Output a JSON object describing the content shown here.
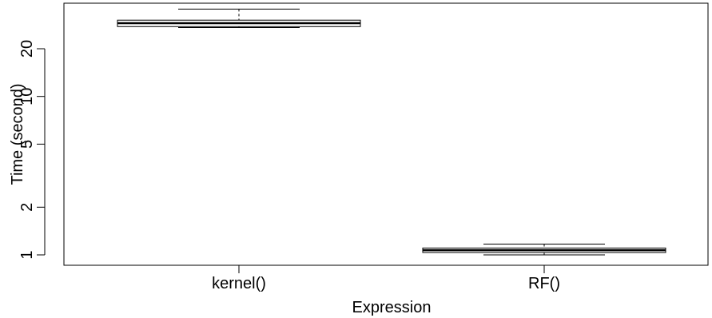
{
  "chart_data": {
    "type": "box",
    "title": "",
    "xlabel": "Expression",
    "ylabel": "Time (second)",
    "y_scale": "log",
    "ylim": [
      0.92,
      40
    ],
    "grid": false,
    "categories": [
      "kernel()",
      "RF()"
    ],
    "y_ticks": [
      1,
      2,
      5,
      10,
      20
    ],
    "y_tick_labels": [
      "1",
      "2",
      "5",
      "10",
      "20"
    ],
    "boxes": [
      {
        "category": "kernel()",
        "whisker_low": 27.2,
        "q1": 27.6,
        "median": 29.0,
        "q3": 30.3,
        "whisker_high": 35.6
      },
      {
        "category": "RF()",
        "whisker_low": 1.0,
        "q1": 1.035,
        "median": 1.07,
        "q3": 1.105,
        "whisker_high": 1.17
      }
    ]
  }
}
